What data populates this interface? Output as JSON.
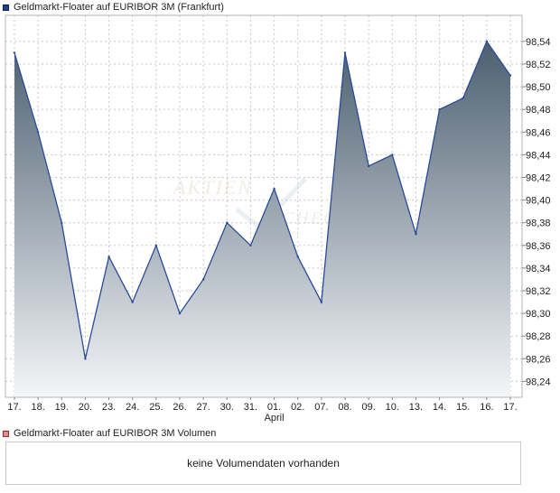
{
  "legend": {
    "price_label": "Geldmarkt-Floater auf EURIBOR 3M (Frankfurt)",
    "price_color": "#1f3f8f",
    "volume_label": "Geldmarkt-Floater auf EURIBOR 3M Volumen",
    "volume_color": "#d9534f"
  },
  "volume_panel": {
    "message": "keine Volumendaten vorhanden"
  },
  "watermark": {
    "text_1": "AKTIEN",
    "text_2": "CHECK"
  },
  "chart_data": {
    "type": "area",
    "title": "",
    "x": [
      "17.",
      "18.",
      "19.",
      "20.",
      "23.",
      "24.",
      "25.",
      "26.",
      "27.",
      "30.",
      "31.",
      "01.",
      "02.",
      "07.",
      "08.",
      "09.",
      "10.",
      "13.",
      "14.",
      "15.",
      "16.",
      "17."
    ],
    "month_labels": [
      {
        "index": 11,
        "text": "April"
      }
    ],
    "series": [
      {
        "values": [
          98.53,
          98.46,
          98.38,
          98.26,
          98.35,
          98.31,
          98.36,
          98.3,
          98.33,
          98.38,
          98.36,
          98.41,
          98.35,
          98.31,
          98.53,
          98.43,
          98.44,
          98.37,
          98.48,
          98.49,
          98.54,
          98.51
        ]
      }
    ],
    "y_ticks": [
      98.24,
      98.26,
      98.28,
      98.3,
      98.32,
      98.34,
      98.36,
      98.38,
      98.4,
      98.42,
      98.44,
      98.46,
      98.48,
      98.5,
      98.52,
      98.54
    ],
    "y_tick_labels": [
      "98,24",
      "98,26",
      "98,28",
      "98,30",
      "98,32",
      "98,34",
      "98,36",
      "98,38",
      "98,40",
      "98,42",
      "98,44",
      "98,46",
      "98,48",
      "98,50",
      "98,52",
      "98,54"
    ],
    "ylim": [
      98.226,
      98.563
    ],
    "grid": true,
    "line_color": "#2a4a9a",
    "fill_top_color": "#4c5f70",
    "fill_bottom_color": "#f4f6f8"
  }
}
